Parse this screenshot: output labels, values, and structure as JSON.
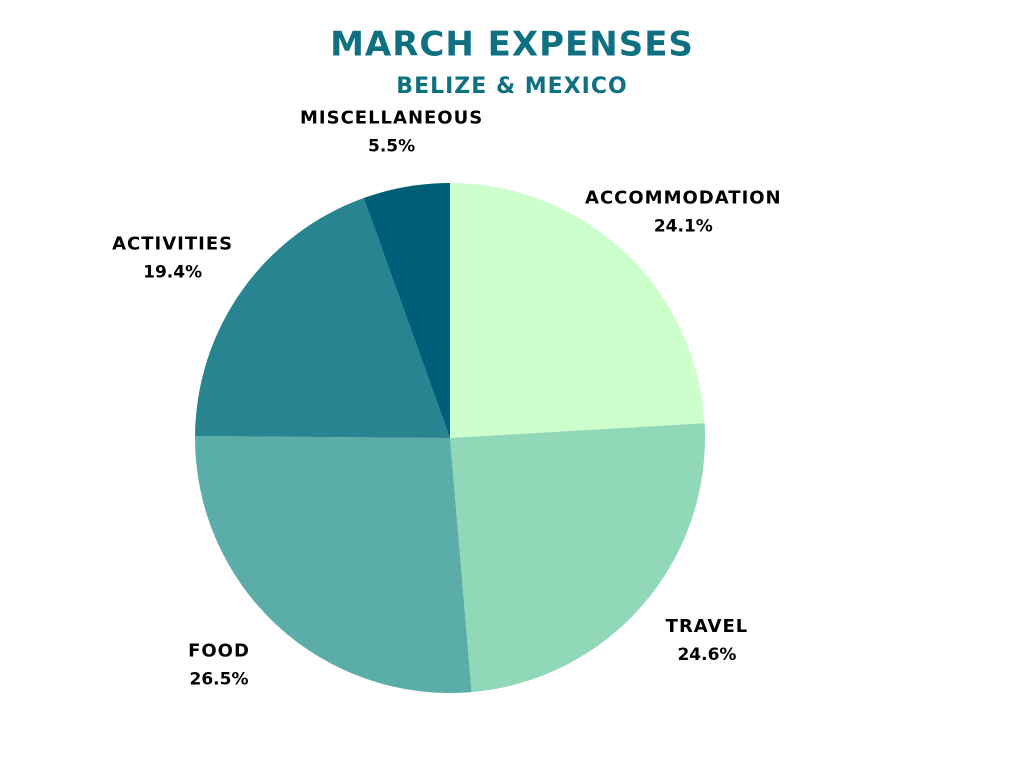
{
  "chart_data": {
    "type": "pie",
    "title": "MARCH EXPENSES",
    "subtitle": "BELIZE & MEXICO",
    "categories": [
      "ACCOMMODATION",
      "TRAVEL",
      "FOOD",
      "ACTIVITIES",
      "MISCELLANEOUS"
    ],
    "values": [
      24.1,
      24.6,
      26.5,
      19.4,
      5.5
    ],
    "value_labels": [
      "24.1%",
      "24.6%",
      "26.5%",
      "19.4%",
      "5.5%"
    ],
    "colors": [
      "#ccffcc",
      "#91d8b9",
      "#5aaea7",
      "#288490",
      "#005f78"
    ]
  }
}
